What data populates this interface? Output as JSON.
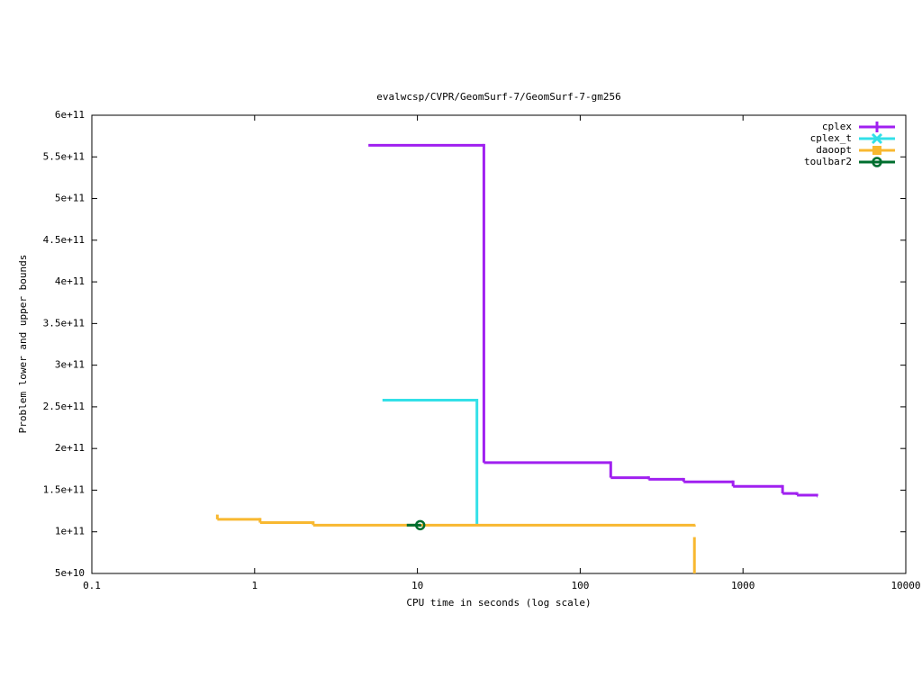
{
  "chart_data": {
    "type": "step",
    "title": "evalwcsp/CVPR/GeomSurf-7/GeomSurf-7-gm256",
    "xlabel": "CPU time in seconds (log scale)",
    "ylabel": "Problem lower and upper bounds",
    "xscale": "log",
    "xlim": [
      0.1,
      10000
    ],
    "xticks": [
      0.1,
      1,
      10,
      100,
      1000,
      10000
    ],
    "ylim": [
      50000000000,
      600000000000
    ],
    "yticks": [
      {
        "value": 50000000000,
        "label": "5e+10"
      },
      {
        "value": 100000000000,
        "label": "1e+11"
      },
      {
        "value": 150000000000,
        "label": "1.5e+11"
      },
      {
        "value": 200000000000,
        "label": "2e+11"
      },
      {
        "value": 250000000000,
        "label": "2.5e+11"
      },
      {
        "value": 300000000000,
        "label": "3e+11"
      },
      {
        "value": 350000000000,
        "label": "3.5e+11"
      },
      {
        "value": 400000000000,
        "label": "4e+11"
      },
      {
        "value": 450000000000,
        "label": "4.5e+11"
      },
      {
        "value": 500000000000,
        "label": "5e+11"
      },
      {
        "value": 550000000000,
        "label": "5.5e+11"
      },
      {
        "value": 600000000000,
        "label": "6e+11"
      }
    ],
    "legend": "top-right",
    "series": [
      {
        "name": "cplex",
        "color": "#a020f0",
        "marker": "plus",
        "x": [
          5.0,
          25.6,
          154,
          263,
          432,
          869,
          1750,
          2145,
          2840
        ],
        "values": [
          564000000000,
          183000000000,
          165000000000,
          163000000000,
          160000000000,
          154500000000,
          146000000000,
          144000000000,
          143000000000
        ]
      },
      {
        "name": "cplex_t",
        "color": "#33e0e8",
        "marker": "cross",
        "x": [
          6.1,
          23.2
        ],
        "values": [
          258000000000,
          109000000000
        ]
      },
      {
        "name": "daoopt",
        "color": "#f8b830",
        "marker": "square",
        "x": [
          0.58,
          0.59,
          1.08,
          2.29,
          503,
          null,
          503,
          503
        ],
        "values": [
          119000000000,
          115000000000,
          111000000000,
          108000000000,
          108000000000,
          null,
          92000000000,
          50000000000
        ]
      },
      {
        "name": "toulbar2",
        "color": "#006e2e",
        "marker": "circle",
        "x": [
          8.6,
          10.4
        ],
        "values": [
          108000000000,
          108000000000
        ]
      }
    ]
  }
}
